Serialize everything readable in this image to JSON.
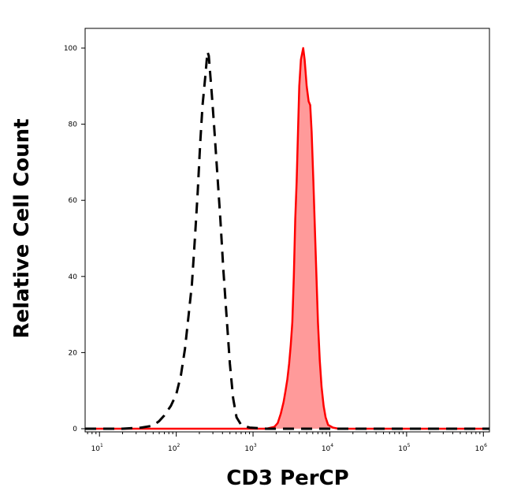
{
  "chart_data": {
    "type": "area",
    "title": "",
    "xlabel": "CD3 PerCP",
    "ylabel": "Relative Cell Count",
    "x_scale": "log",
    "xlim": [
      6.5,
      1200000
    ],
    "ylim": [
      0,
      105
    ],
    "grid": false,
    "legend": "none",
    "x_ticks": [
      {
        "base": "10",
        "exp": "1",
        "value": 10
      },
      {
        "base": "10",
        "exp": "2",
        "value": 100
      },
      {
        "base": "10",
        "exp": "3",
        "value": 1000
      },
      {
        "base": "10",
        "exp": "4",
        "value": 10000
      },
      {
        "base": "10",
        "exp": "5",
        "value": 100000
      },
      {
        "base": "10",
        "exp": "6",
        "value": 1000000
      }
    ],
    "y_ticks": [
      {
        "label": "0",
        "value": 0
      },
      {
        "label": "20",
        "value": 20
      },
      {
        "label": "40",
        "value": 40
      },
      {
        "label": "60",
        "value": 60
      },
      {
        "label": "80",
        "value": 80
      },
      {
        "label": "100",
        "value": 100
      }
    ],
    "series": [
      {
        "style": "dashed",
        "color": "#000000",
        "fill": "none",
        "points": [
          [
            6.5,
            0
          ],
          [
            20,
            0
          ],
          [
            35,
            0.3
          ],
          [
            50,
            0.8
          ],
          [
            60,
            2
          ],
          [
            70,
            3.5
          ],
          [
            85,
            6
          ],
          [
            100,
            9
          ],
          [
            115,
            14
          ],
          [
            130,
            21
          ],
          [
            145,
            30
          ],
          [
            160,
            38
          ],
          [
            175,
            50
          ],
          [
            190,
            62
          ],
          [
            205,
            75
          ],
          [
            220,
            85
          ],
          [
            240,
            93
          ],
          [
            255,
            99
          ],
          [
            265,
            98
          ],
          [
            275,
            94
          ],
          [
            290,
            88
          ],
          [
            310,
            80
          ],
          [
            340,
            68
          ],
          [
            375,
            55
          ],
          [
            410,
            42
          ],
          [
            450,
            30
          ],
          [
            500,
            17
          ],
          [
            550,
            8
          ],
          [
            610,
            3
          ],
          [
            700,
            1
          ],
          [
            900,
            0.3
          ],
          [
            1500,
            0
          ],
          [
            1200000,
            0
          ]
        ]
      },
      {
        "style": "solid",
        "color": "#ff0000",
        "fill": "#ff9a9a",
        "points": [
          [
            6.5,
            0
          ],
          [
            1500,
            0
          ],
          [
            1900,
            0.5
          ],
          [
            2100,
            1.5
          ],
          [
            2300,
            4
          ],
          [
            2500,
            7
          ],
          [
            2650,
            10
          ],
          [
            2800,
            13
          ],
          [
            2950,
            17
          ],
          [
            3100,
            22
          ],
          [
            3250,
            28
          ],
          [
            3400,
            40
          ],
          [
            3550,
            55
          ],
          [
            3700,
            65
          ],
          [
            3850,
            78
          ],
          [
            4000,
            90
          ],
          [
            4200,
            97
          ],
          [
            4500,
            100
          ],
          [
            4700,
            97
          ],
          [
            5000,
            90
          ],
          [
            5300,
            86
          ],
          [
            5550,
            85
          ],
          [
            5800,
            78
          ],
          [
            6100,
            65
          ],
          [
            6400,
            52
          ],
          [
            6700,
            40
          ],
          [
            7000,
            28
          ],
          [
            7400,
            18
          ],
          [
            7800,
            11
          ],
          [
            8300,
            6
          ],
          [
            8800,
            3
          ],
          [
            9500,
            1
          ],
          [
            11000,
            0.3
          ],
          [
            13000,
            0
          ],
          [
            1200000,
            0
          ]
        ]
      }
    ]
  }
}
